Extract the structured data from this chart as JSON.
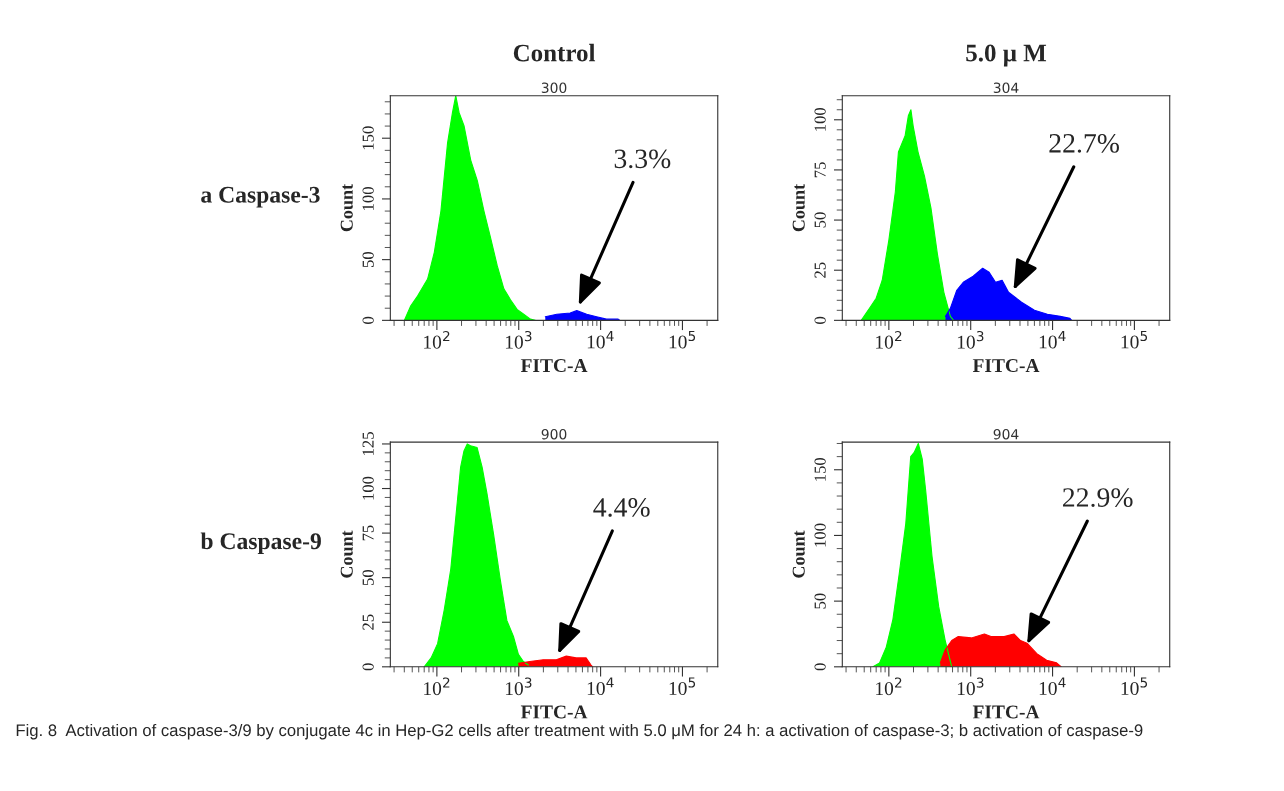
{
  "chart_data": [
    {
      "type": "area",
      "title": "Control",
      "subtitle": "300",
      "xlabel": "FITC-A",
      "ylabel": "Count",
      "log": "x",
      "grid": false,
      "xlim": [
        27,
        270000
      ],
      "xticks": [
        {
          "value": 100,
          "label": "10$^{2}$"
        },
        {
          "value": 1000,
          "label": "10$^{3}$"
        },
        {
          "value": 10000,
          "label": "10$^{4}$"
        },
        {
          "value": 100000,
          "label": "10$^{5}$"
        }
      ],
      "ylim": [
        0,
        185
      ],
      "yticks": [
        0,
        50,
        100,
        150
      ],
      "series": [
        {
          "color": "#00ff00",
          "x": [
            40,
            48,
            58,
            77,
            93,
            112,
            135,
            155,
            170,
            187,
            215,
            259,
            312,
            376,
            453,
            546,
            658,
            793,
            955,
            1150,
            1390,
            1590
          ],
          "values": [
            0,
            12,
            20,
            34,
            56,
            90,
            146,
            171,
            185,
            171,
            160,
            132,
            115,
            90,
            68,
            45,
            26,
            17,
            9,
            5,
            1,
            0
          ]
        },
        {
          "color": "#0000ff",
          "x": [
            2110,
            2920,
            4250,
            5120,
            6770,
            8930,
            11800,
            16400,
            17200
          ],
          "values": [
            3,
            5,
            6,
            8,
            5,
            3,
            1,
            1,
            0
          ]
        }
      ],
      "annotations": [
        "a Caspase-3",
        {
          "text": "3.3%",
          "x": 5400,
          "y": 12
        }
      ]
    },
    {
      "type": "area",
      "title": "5.0 μ M",
      "subtitle": "304",
      "xlabel": "FITC-A",
      "ylabel": "Count",
      "log": "x",
      "grid": false,
      "xlim": [
        27,
        270000
      ],
      "xticks": [
        {
          "value": 100,
          "label": "10$^{2}$"
        },
        {
          "value": 1000,
          "label": "10$^{3}$"
        },
        {
          "value": 10000,
          "label": "10$^{4}$"
        },
        {
          "value": 100000,
          "label": "10$^{5}$"
        }
      ],
      "ylim": [
        0,
        112
      ],
      "yticks": [
        0,
        25,
        50,
        75,
        100
      ],
      "series": [
        {
          "color": "#00ff00",
          "x": [
            46,
            58,
            70,
            83,
            100,
            120,
            131,
            158,
            173,
            186,
            198,
            227,
            272,
            327,
            392,
            470,
            564,
            618
          ],
          "values": [
            0,
            6,
            11,
            20,
            40,
            64,
            84,
            92,
            102,
            105,
            97,
            84,
            72,
            56,
            33,
            14,
            2,
            0
          ]
        },
        {
          "color": "#0000ff",
          "x": [
            492,
            564,
            676,
            811,
            1070,
            1400,
            1680,
            2010,
            2420,
            2900,
            4180,
            6010,
            8650,
            12400,
            16300,
            17100
          ],
          "values": [
            2,
            6,
            15,
            19,
            22,
            26,
            24,
            19,
            20,
            14,
            9,
            5,
            3,
            2,
            1,
            0
          ]
        }
      ],
      "annotations": [
        {
          "text": "22.7%",
          "x": 3330,
          "y": 15
        }
      ]
    },
    {
      "type": "area",
      "subtitle": "900",
      "xlabel": "FITC-A",
      "ylabel": "Count",
      "log": "x",
      "grid": false,
      "xlim": [
        27,
        270000
      ],
      "xticks": [
        {
          "value": 100,
          "label": "10$^{2}$"
        },
        {
          "value": 1000,
          "label": "10$^{3}$"
        },
        {
          "value": 10000,
          "label": "10$^{4}$"
        },
        {
          "value": 100000,
          "label": "10$^{5}$"
        }
      ],
      "ylim": [
        0,
        126
      ],
      "yticks": [
        0,
        25,
        50,
        75,
        100,
        125
      ],
      "series": [
        {
          "color": "#00ff00",
          "x": [
            70,
            85,
            102,
            123,
            148,
            178,
            195,
            214,
            235,
            258,
            310,
            357,
            410,
            494,
            594,
            716,
            862,
            991,
            1140,
            1310
          ],
          "values": [
            0,
            5,
            13,
            32,
            55,
            93,
            112,
            121,
            125,
            124,
            123,
            112,
            97,
            74,
            49,
            26,
            17,
            7,
            3,
            1
          ]
        },
        {
          "color": "#ff0000",
          "x": [
            991,
            1370,
            1990,
            2880,
            3810,
            5030,
            6650,
            7640,
            8000
          ],
          "values": [
            2,
            3,
            4,
            4,
            6,
            5,
            5,
            1,
            0
          ]
        }
      ],
      "annotations": [
        "b Caspase-9",
        {
          "text": "4.4%",
          "x": 3020,
          "y": 7
        }
      ]
    },
    {
      "type": "area",
      "subtitle": "904",
      "xlabel": "FITC-A",
      "ylabel": "Count",
      "log": "x",
      "grid": false,
      "xlim": [
        27,
        270000
      ],
      "xticks": [
        {
          "value": 100,
          "label": "10$^{2}$"
        },
        {
          "value": 1000,
          "label": "10$^{3}$"
        },
        {
          "value": 10000,
          "label": "10$^{4}$"
        },
        {
          "value": 100000,
          "label": "10$^{5}$"
        }
      ],
      "ylim": [
        0,
        171
      ],
      "yticks": [
        0,
        50,
        100,
        150
      ],
      "series": [
        {
          "color": "#00ff00",
          "x": [
            64,
            77,
            93,
            112,
            134,
            161,
            185,
            203,
            229,
            256,
            281,
            337,
            406,
            488,
            560,
            586
          ],
          "values": [
            0,
            3,
            15,
            36,
            71,
            109,
            160,
            163,
            170,
            158,
            135,
            84,
            46,
            20,
            5,
            0
          ]
        },
        {
          "color": "#ff0000",
          "x": [
            425,
            488,
            586,
            705,
            1020,
            1470,
            1770,
            2560,
            3370,
            4060,
            4880,
            6430,
            8470,
            11200,
            12800
          ],
          "values": [
            3,
            13,
            20,
            23,
            22,
            25,
            23,
            23,
            25,
            20,
            18,
            10,
            5,
            3,
            0
          ]
        }
      ],
      "annotations": [
        {
          "text": "22.9%",
          "x": 4880,
          "y": 17
        },
        "Fig. 8  Activation of caspase-3/9 by conjugate 4c in Hep-G2 cells after treatment with 5.0 μM for 24 h: a activation of caspase-3; b activation of caspase-9"
      ]
    }
  ]
}
